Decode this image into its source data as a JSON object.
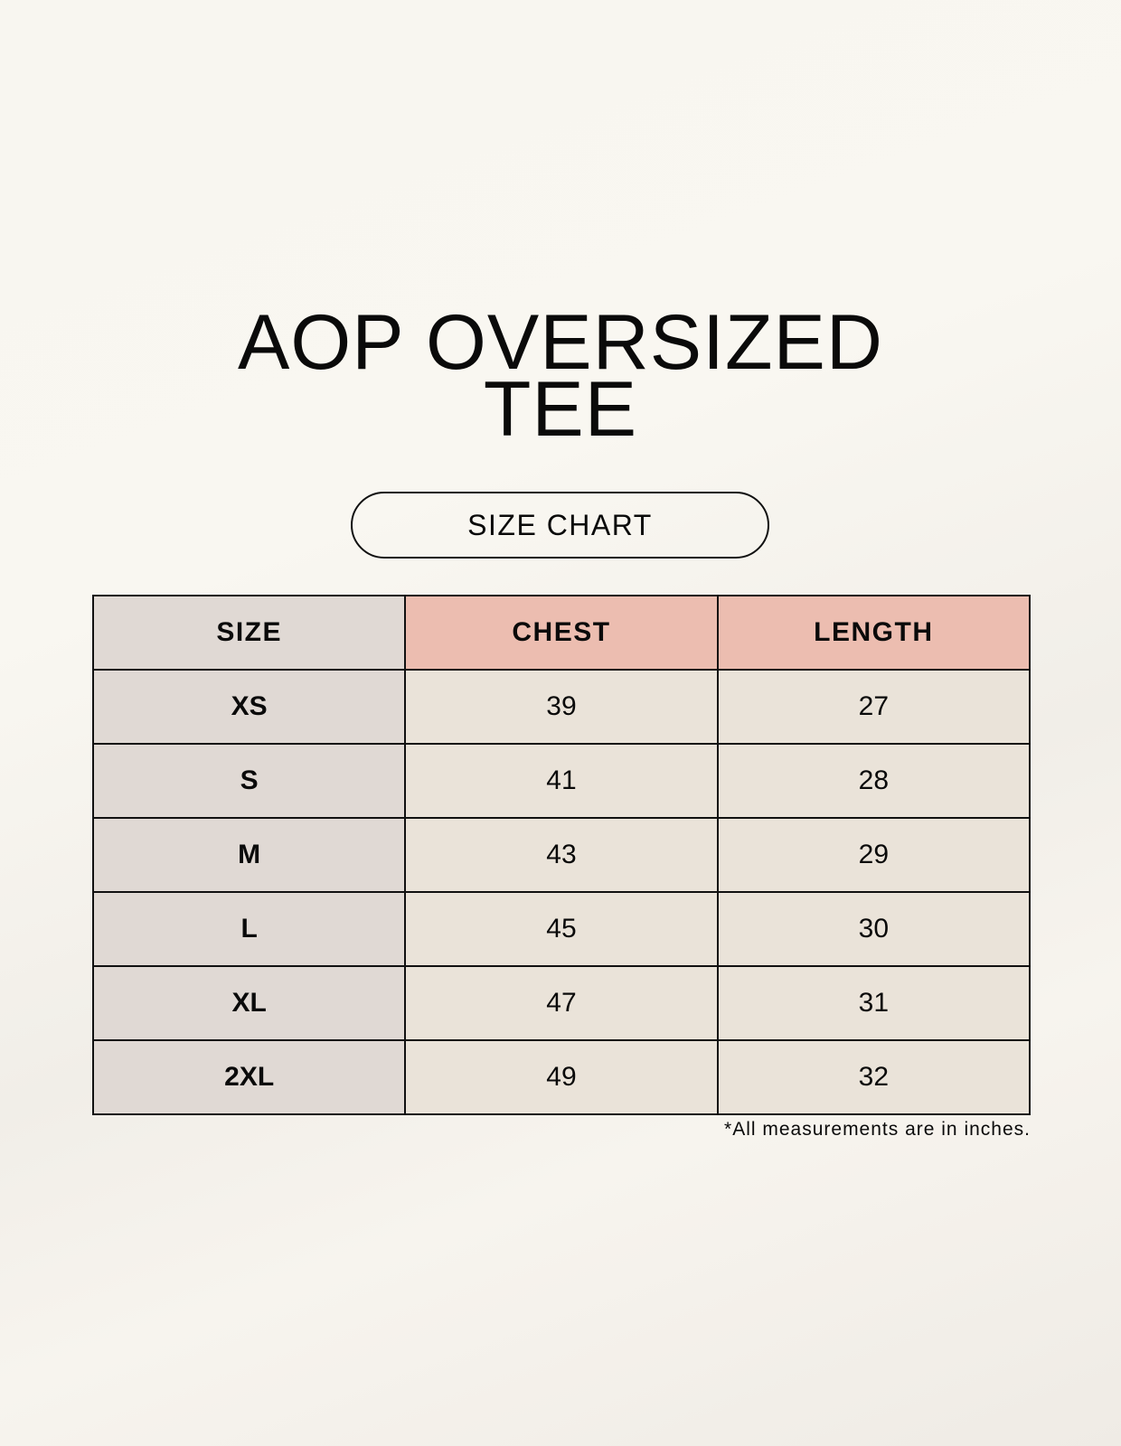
{
  "title": {
    "line1": "AOP OVERSIZED",
    "line2": "TEE"
  },
  "badge": "SIZE CHART",
  "colors": {
    "size_column": "#e0d9d4",
    "header_accent": "#ecbdb0",
    "value_cells": "#eae3d9"
  },
  "table": {
    "headers": [
      "SIZE",
      "CHEST",
      "LENGTH"
    ],
    "rows": [
      [
        "XS",
        "39",
        "27"
      ],
      [
        "S",
        "41",
        "28"
      ],
      [
        "M",
        "43",
        "29"
      ],
      [
        "L",
        "45",
        "30"
      ],
      [
        "XL",
        "47",
        "31"
      ],
      [
        "2XL",
        "49",
        "32"
      ]
    ]
  },
  "footnote": "*All measurements are in inches."
}
